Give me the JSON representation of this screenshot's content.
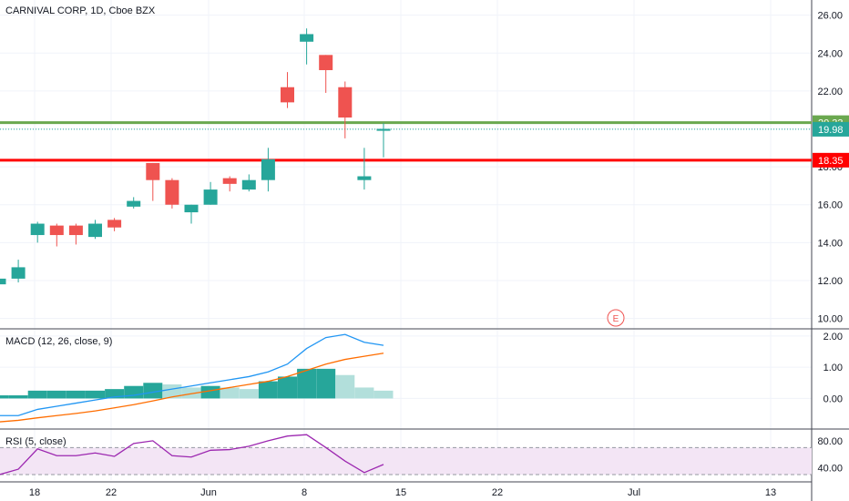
{
  "header": {
    "title": "CARNIVAL CORP, 1D, Cboe BZX"
  },
  "colors": {
    "up": "#26a69a",
    "down": "#ef5350",
    "macd_line": "#2196f3",
    "signal_line": "#ff6d00",
    "hist_up_strong": "#26a69a",
    "hist_up_weak": "#b2dfdb",
    "rsi_line": "#9c27b0",
    "rsi_band": "#f3e5f5",
    "resistance": "#6aa84f",
    "support": "#ff0000",
    "current": "#26a69a"
  },
  "chart_data": [
    {
      "type": "candlestick",
      "title": "CARNIVAL CORP, 1D, Cboe BZX",
      "x_tick_labels": [
        "18",
        "22",
        "Jun",
        "8",
        "15",
        "22",
        "Jul",
        "13"
      ],
      "y_tick_labels": [
        "10.00",
        "12.00",
        "14.00",
        "16.00",
        "18.00",
        "20.00",
        "22.00",
        "24.00",
        "26.00"
      ],
      "ylim": [
        9.5,
        26.8
      ],
      "candles": [
        {
          "o": 11.8,
          "h": 12.2,
          "l": 11.7,
          "c": 12.1
        },
        {
          "o": 12.1,
          "h": 13.1,
          "l": 11.9,
          "c": 12.7
        },
        {
          "o": 14.4,
          "h": 15.1,
          "l": 14.0,
          "c": 15.0
        },
        {
          "o": 14.9,
          "h": 15.0,
          "l": 13.8,
          "c": 14.4
        },
        {
          "o": 14.9,
          "h": 15.0,
          "l": 13.9,
          "c": 14.4
        },
        {
          "o": 14.3,
          "h": 15.2,
          "l": 14.2,
          "c": 15.0
        },
        {
          "o": 15.2,
          "h": 15.3,
          "l": 14.6,
          "c": 14.8
        },
        {
          "o": 15.9,
          "h": 16.4,
          "l": 15.8,
          "c": 16.2
        },
        {
          "o": 18.2,
          "h": 18.2,
          "l": 16.2,
          "c": 17.3
        },
        {
          "o": 17.3,
          "h": 17.4,
          "l": 15.8,
          "c": 16.0
        },
        {
          "o": 15.6,
          "h": 16.0,
          "l": 15.0,
          "c": 16.0
        },
        {
          "o": 16.0,
          "h": 17.2,
          "l": 16.0,
          "c": 16.8
        },
        {
          "o": 17.4,
          "h": 17.5,
          "l": 16.7,
          "c": 17.1
        },
        {
          "o": 16.8,
          "h": 17.6,
          "l": 16.7,
          "c": 17.3
        },
        {
          "o": 17.3,
          "h": 19.0,
          "l": 16.7,
          "c": 18.4
        },
        {
          "o": 22.2,
          "h": 23.0,
          "l": 21.1,
          "c": 21.4
        },
        {
          "o": 24.6,
          "h": 25.3,
          "l": 23.4,
          "c": 25.0
        },
        {
          "o": 23.9,
          "h": 23.9,
          "l": 21.9,
          "c": 23.1
        },
        {
          "o": 22.2,
          "h": 22.5,
          "l": 19.5,
          "c": 20.6
        },
        {
          "o": 17.3,
          "h": 19.0,
          "l": 16.8,
          "c": 17.5
        },
        {
          "o": 19.9,
          "h": 20.3,
          "l": 18.5,
          "c": 20.0
        }
      ],
      "horizontal_lines": [
        {
          "value": 20.33,
          "label": "20.33"
        },
        {
          "value": 18.35,
          "label": "18.35"
        }
      ],
      "last_price": {
        "value": 19.98,
        "label": "19.98"
      },
      "earnings_marker": {
        "label": "E"
      }
    },
    {
      "type": "macd",
      "title": "MACD (12, 26, close, 9)",
      "y_tick_labels": [
        "0.00",
        "1.00",
        "2.00"
      ],
      "ylim": [
        -0.95,
        2.2
      ],
      "macd": [
        -0.55,
        -0.55,
        -0.35,
        -0.25,
        -0.15,
        -0.05,
        0.05,
        0.1,
        0.2,
        0.3,
        0.4,
        0.5,
        0.6,
        0.7,
        0.85,
        1.1,
        1.6,
        1.95,
        2.05,
        1.8,
        1.7
      ],
      "signal": [
        -0.75,
        -0.7,
        -0.62,
        -0.55,
        -0.48,
        -0.4,
        -0.3,
        -0.2,
        -0.08,
        0.05,
        0.15,
        0.25,
        0.35,
        0.45,
        0.55,
        0.7,
        0.9,
        1.1,
        1.25,
        1.35,
        1.45
      ],
      "histogram": [
        0.1,
        0.1,
        0.25,
        0.25,
        0.25,
        0.25,
        0.3,
        0.4,
        0.5,
        0.45,
        0.35,
        0.4,
        0.35,
        0.3,
        0.55,
        0.7,
        0.95,
        0.95,
        0.75,
        0.35,
        0.25
      ]
    },
    {
      "type": "rsi",
      "title": "RSI (5, close)",
      "y_tick_labels": [
        "40.00",
        "80.00"
      ],
      "ylim": [
        22,
        96
      ],
      "band": [
        30,
        70
      ],
      "values": [
        30,
        38,
        68,
        58,
        58,
        62,
        57,
        76,
        80,
        58,
        56,
        66,
        67,
        72,
        80,
        87,
        89,
        70,
        50,
        33,
        45
      ]
    }
  ]
}
